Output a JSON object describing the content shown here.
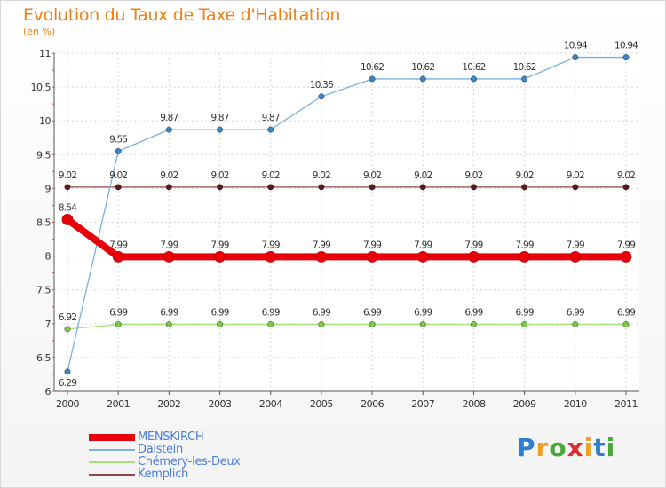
{
  "chart_title": "Evolution du Taux de Taxe d'Habitation",
  "chart_subtitle": "(en %)",
  "brand": "Proxiti",
  "chart_data": {
    "type": "line",
    "title": "Evolution du Taux de Taxe d'Habitation",
    "subtitle": "(en %)",
    "xlabel": "",
    "ylabel": "",
    "x": [
      "2000",
      "2001",
      "2002",
      "2003",
      "2004",
      "2005",
      "2006",
      "2007",
      "2008",
      "2009",
      "2010",
      "2011"
    ],
    "ylim": [
      6,
      11
    ],
    "yticks": [
      "6",
      "6.5",
      "7",
      "7.5",
      "8",
      "8.5",
      "9",
      "9.5",
      "10",
      "10.5",
      "11"
    ],
    "grid": true,
    "legend_position": "bottom-left",
    "series": [
      {
        "name": "MENSKIRCH",
        "color": "#e8000b",
        "emphasis": true,
        "values": [
          8.54,
          7.99,
          7.99,
          7.99,
          7.99,
          7.99,
          7.99,
          7.99,
          7.99,
          7.99,
          7.99,
          7.99
        ],
        "labels": [
          "8.54",
          "7.99",
          "7.99",
          "7.99",
          "7.99",
          "7.99",
          "7.99",
          "7.99",
          "7.99",
          "7.99",
          "7.99",
          "7.99"
        ]
      },
      {
        "name": "Dalstein",
        "color": "#7ab0dc",
        "emphasis": false,
        "values": [
          6.29,
          9.55,
          9.87,
          9.87,
          9.87,
          10.36,
          10.62,
          10.62,
          10.62,
          10.62,
          10.94,
          10.94
        ],
        "labels": [
          "6.29",
          "9.55",
          "9.87",
          "9.87",
          "9.87",
          "10.36",
          "10.62",
          "10.62",
          "10.62",
          "10.62",
          "10.94",
          "10.94"
        ]
      },
      {
        "name": "Chémery-les-Deux",
        "color": "#a6e07a",
        "emphasis": false,
        "values": [
          6.92,
          6.99,
          6.99,
          6.99,
          6.99,
          6.99,
          6.99,
          6.99,
          6.99,
          6.99,
          6.99,
          6.99
        ],
        "labels": [
          "6.92",
          "6.99",
          "6.99",
          "6.99",
          "6.99",
          "6.99",
          "6.99",
          "6.99",
          "6.99",
          "6.99",
          "6.99",
          "6.99"
        ]
      },
      {
        "name": "Kemplich",
        "color": "#8b4a4a",
        "emphasis": false,
        "values": [
          9.02,
          9.02,
          9.02,
          9.02,
          9.02,
          9.02,
          9.02,
          9.02,
          9.02,
          9.02,
          9.02,
          9.02
        ],
        "labels": [
          "9.02",
          "9.02",
          "9.02",
          "9.02",
          "9.02",
          "9.02",
          "9.02",
          "9.02",
          "9.02",
          "9.02",
          "9.02",
          "9.02"
        ]
      }
    ]
  }
}
